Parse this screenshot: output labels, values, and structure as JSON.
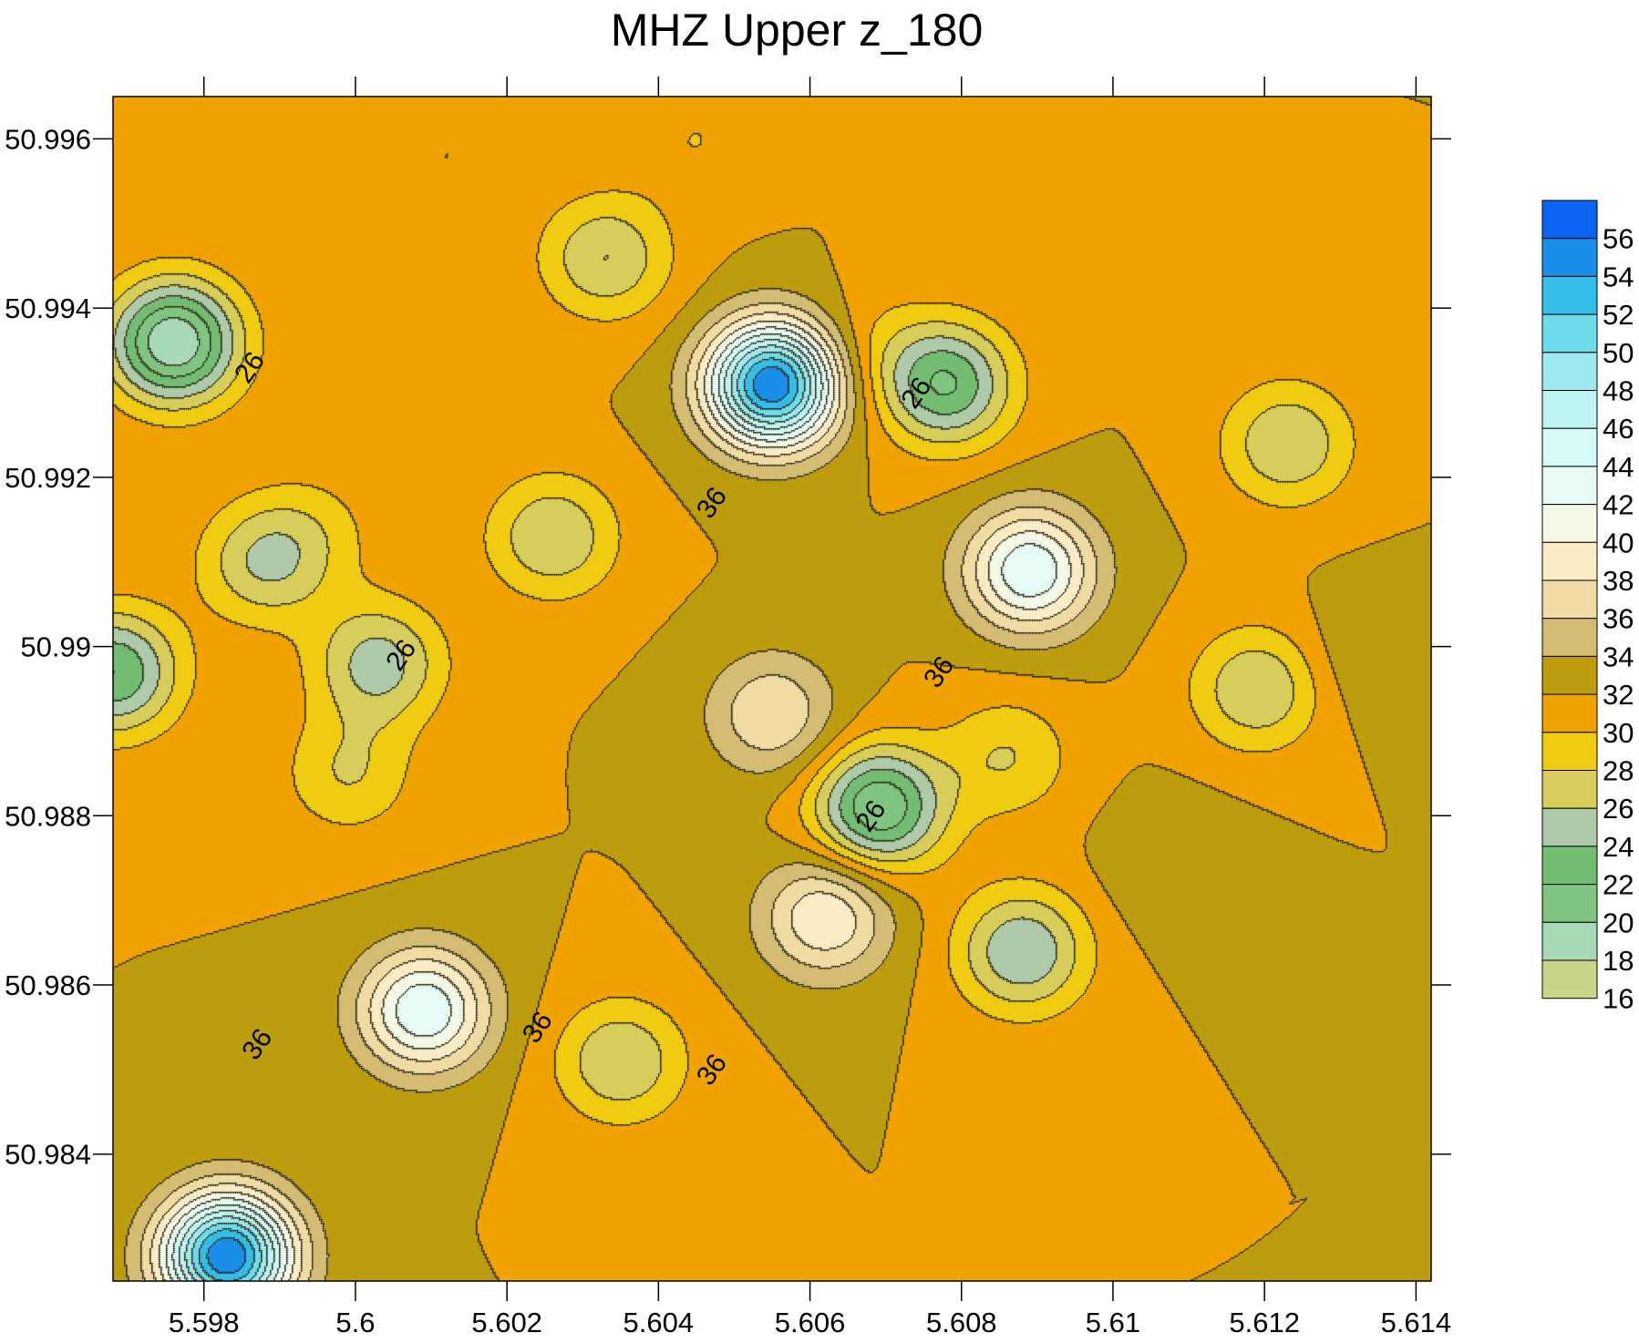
{
  "chart_data": {
    "type": "contour",
    "title": "MHZ Upper z_180",
    "xlabel": "",
    "ylabel": "",
    "xlim": [
      5.5968,
      5.6142
    ],
    "ylim": [
      50.9825,
      50.9965
    ],
    "x_ticks": [
      "5.598",
      "5.6",
      "5.602",
      "5.604",
      "5.606",
      "5.608",
      "5.61",
      "5.612",
      "5.614"
    ],
    "x_tick_values": [
      5.598,
      5.6,
      5.602,
      5.604,
      5.606,
      5.608,
      5.61,
      5.612,
      5.614
    ],
    "y_ticks": [
      "50.984",
      "50.986",
      "50.988",
      "50.99",
      "50.992",
      "50.994",
      "50.996"
    ],
    "y_tick_values": [
      50.984,
      50.986,
      50.988,
      50.99,
      50.992,
      50.994,
      50.996
    ],
    "grid": false,
    "colorbar": {
      "placement": "right",
      "levels": [
        16,
        18,
        20,
        22,
        24,
        26,
        28,
        30,
        32,
        34,
        36,
        38,
        40,
        42,
        44,
        46,
        48,
        50,
        52,
        54,
        56
      ],
      "labels": [
        "56",
        "54",
        "52",
        "50",
        "48",
        "46",
        "44",
        "42",
        "40",
        "38",
        "36",
        "34",
        "32",
        "30",
        "28",
        "26",
        "24",
        "22",
        "20",
        "18",
        "16"
      ],
      "colors": [
        "#cbd58a",
        "#a8d9b6",
        "#7fc47f",
        "#72bd72",
        "#aecaa8",
        "#d7cd5a",
        "#efcb11",
        "#f0a300",
        "#bd9d0e",
        "#d4bd73",
        "#f0dba2",
        "#fcecc6",
        "#f4f8e6",
        "#e6fbf5",
        "#d4fbf6",
        "#bef3f2",
        "#9de9ee",
        "#6ddbea",
        "#35bdea",
        "#1a8ee8",
        "#0b64f0"
      ]
    },
    "background_value": 32,
    "field_features": [
      {
        "x": 5.6055,
        "y": 50.9931,
        "value": 56,
        "kind": "max"
      },
      {
        "x": 5.5983,
        "y": 50.9828,
        "value": 56,
        "kind": "max"
      },
      {
        "x": 5.6009,
        "y": 50.9857,
        "value": 44,
        "kind": "max"
      },
      {
        "x": 5.6089,
        "y": 50.9909,
        "value": 44,
        "kind": "max"
      },
      {
        "x": 5.6062,
        "y": 50.9868,
        "value": 40,
        "kind": "max"
      },
      {
        "x": 5.6055,
        "y": 50.9892,
        "value": 38,
        "kind": "max"
      },
      {
        "x": 5.6134,
        "y": 50.9899,
        "value": 34,
        "kind": "max"
      },
      {
        "x": 5.6108,
        "y": 50.9874,
        "value": 34,
        "kind": "max"
      },
      {
        "x": 5.5976,
        "y": 50.9936,
        "value": 18,
        "kind": "min"
      },
      {
        "x": 5.6069,
        "y": 50.9881,
        "value": 20,
        "kind": "min"
      },
      {
        "x": 5.6078,
        "y": 50.9931,
        "value": 22,
        "kind": "min"
      },
      {
        "x": 5.5968,
        "y": 50.9897,
        "value": 22,
        "kind": "min"
      },
      {
        "x": 5.6003,
        "y": 50.9898,
        "value": 25,
        "kind": "min"
      },
      {
        "x": 5.6088,
        "y": 50.9864,
        "value": 24,
        "kind": "min"
      },
      {
        "x": 5.6026,
        "y": 50.9913,
        "value": 26,
        "kind": "min"
      },
      {
        "x": 5.6033,
        "y": 50.9946,
        "value": 26,
        "kind": "min"
      },
      {
        "x": 5.6119,
        "y": 50.9895,
        "value": 26,
        "kind": "min"
      },
      {
        "x": 5.6123,
        "y": 50.9924,
        "value": 26,
        "kind": "min"
      },
      {
        "x": 5.6035,
        "y": 50.9851,
        "value": 26,
        "kind": "min"
      },
      {
        "x": 5.5988,
        "y": 50.991,
        "value": 26,
        "kind": "min"
      },
      {
        "x": 5.5995,
        "y": 50.9914,
        "value": 30,
        "kind": "min"
      },
      {
        "x": 5.6012,
        "y": 50.9958,
        "value": 30,
        "kind": "min"
      },
      {
        "x": 5.5999,
        "y": 50.9885,
        "value": 28,
        "kind": "min"
      },
      {
        "x": 5.6086,
        "y": 50.9887,
        "value": 28,
        "kind": "min"
      },
      {
        "x": 5.6068,
        "y": 50.9935,
        "value": 30,
        "kind": "min"
      },
      {
        "x": 5.6045,
        "y": 50.996,
        "value": 30,
        "kind": "min"
      }
    ],
    "contour_labels": [
      {
        "text": "26",
        "x": 5.5986,
        "y": 50.9933
      },
      {
        "text": "26",
        "x": 5.6006,
        "y": 50.9899
      },
      {
        "text": "26",
        "x": 5.6074,
        "y": 50.993
      },
      {
        "text": "26",
        "x": 5.6068,
        "y": 50.988
      },
      {
        "text": "36",
        "x": 5.6047,
        "y": 50.9917
      },
      {
        "text": "36",
        "x": 5.6077,
        "y": 50.9897
      },
      {
        "text": "36",
        "x": 5.5987,
        "y": 50.9853
      },
      {
        "text": "36",
        "x": 5.6024,
        "y": 50.9855
      },
      {
        "text": "36",
        "x": 5.6047,
        "y": 50.985
      }
    ]
  }
}
